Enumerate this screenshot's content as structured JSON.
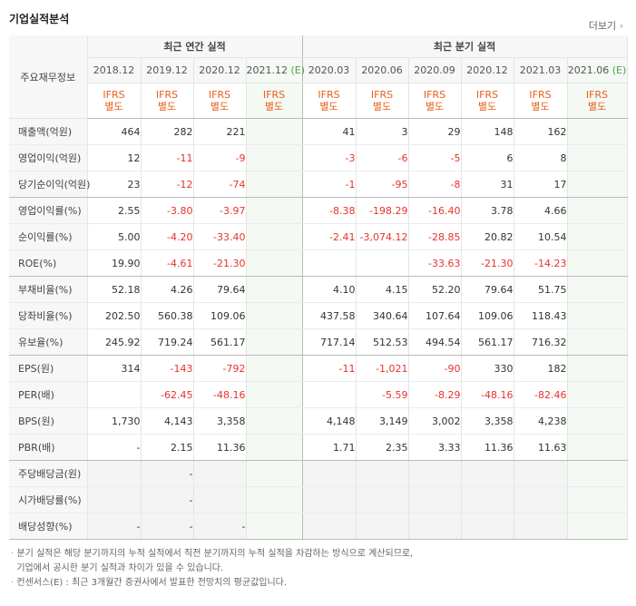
{
  "section_title": "기업실적분석",
  "more_label": "더보기",
  "table": {
    "corner_label": "주요재무정보",
    "annual_header": "최근 연간 실적",
    "quarter_header": "최근 분기 실적",
    "periods": [
      {
        "label": "2018.12",
        "est": ""
      },
      {
        "label": "2019.12",
        "est": ""
      },
      {
        "label": "2020.12",
        "est": ""
      },
      {
        "label": "2021.12",
        "est": "(E)"
      },
      {
        "label": "2020.03",
        "est": ""
      },
      {
        "label": "2020.06",
        "est": ""
      },
      {
        "label": "2020.09",
        "est": ""
      },
      {
        "label": "2020.12",
        "est": ""
      },
      {
        "label": "2021.03",
        "est": ""
      },
      {
        "label": "2021.06",
        "est": "(E)"
      }
    ],
    "ifrs_line1": "IFRS",
    "ifrs_line2": "별도",
    "rows": [
      {
        "label": "매출액(억원)",
        "values": [
          "464",
          "282",
          "221",
          "",
          "41",
          "3",
          "29",
          "148",
          "162",
          ""
        ]
      },
      {
        "label": "영업이익(억원)",
        "values": [
          "12",
          "-11",
          "-9",
          "",
          "-3",
          "-6",
          "-5",
          "6",
          "8",
          ""
        ]
      },
      {
        "label": "당기순이익(억원)",
        "values": [
          "23",
          "-12",
          "-74",
          "",
          "-1",
          "-95",
          "-8",
          "31",
          "17",
          ""
        ]
      },
      {
        "label": "영업이익률(%)",
        "values": [
          "2.55",
          "-3.80",
          "-3.97",
          "",
          "-8.38",
          "-198.29",
          "-16.40",
          "3.78",
          "4.66",
          ""
        ]
      },
      {
        "label": "순이익률(%)",
        "values": [
          "5.00",
          "-4.20",
          "-33.40",
          "",
          "-2.41",
          "-3,074.12",
          "-28.85",
          "20.82",
          "10.54",
          ""
        ]
      },
      {
        "label": "ROE(%)",
        "values": [
          "19.90",
          "-4.61",
          "-21.30",
          "",
          "",
          "",
          "-33.63",
          "-21.30",
          "-14.23",
          ""
        ]
      },
      {
        "label": "부채비율(%)",
        "values": [
          "52.18",
          "4.26",
          "79.64",
          "",
          "4.10",
          "4.15",
          "52.20",
          "79.64",
          "51.75",
          ""
        ]
      },
      {
        "label": "당좌비율(%)",
        "values": [
          "202.50",
          "560.38",
          "109.06",
          "",
          "437.58",
          "340.64",
          "107.64",
          "109.06",
          "118.43",
          ""
        ]
      },
      {
        "label": "유보율(%)",
        "values": [
          "245.92",
          "719.24",
          "561.17",
          "",
          "717.14",
          "512.53",
          "494.54",
          "561.17",
          "716.32",
          ""
        ]
      },
      {
        "label": "EPS(원)",
        "values": [
          "314",
          "-143",
          "-792",
          "",
          "-11",
          "-1,021",
          "-90",
          "330",
          "182",
          ""
        ]
      },
      {
        "label": "PER(배)",
        "values": [
          "",
          "-62.45",
          "-48.16",
          "",
          "",
          "-5.59",
          "-8.29",
          "-48.16",
          "-82.46",
          ""
        ]
      },
      {
        "label": "BPS(원)",
        "values": [
          "1,730",
          "4,143",
          "3,358",
          "",
          "4,148",
          "3,149",
          "3,002",
          "3,358",
          "4,238",
          ""
        ]
      },
      {
        "label": "PBR(배)",
        "values": [
          "-",
          "2.15",
          "11.36",
          "",
          "1.71",
          "2.35",
          "3.33",
          "11.36",
          "11.63",
          ""
        ]
      },
      {
        "label": "주당배당금(원)",
        "values": [
          "",
          "-",
          "",
          "",
          "",
          "",
          "",
          "",
          "",
          ""
        ]
      },
      {
        "label": "시가배당률(%)",
        "values": [
          "",
          "-",
          "",
          "",
          "",
          "",
          "",
          "",
          "",
          ""
        ]
      },
      {
        "label": "배당성향(%)",
        "values": [
          "-",
          "-",
          "-",
          "",
          "",
          "",
          "",
          "",
          "",
          ""
        ]
      }
    ]
  },
  "notes": [
    "분기 실적은 해당 분기까지의 누적 실적에서 직전 분기까지의 누적 실적을 차감하는 방식으로 계산되므로,",
    "기업에서 공시한 분기 실적과 차이가 있을 수 있습니다.",
    "컨센서스(E) : 최근 3개월간 증권사에서 발표한 전망치의 평균값입니다."
  ]
}
